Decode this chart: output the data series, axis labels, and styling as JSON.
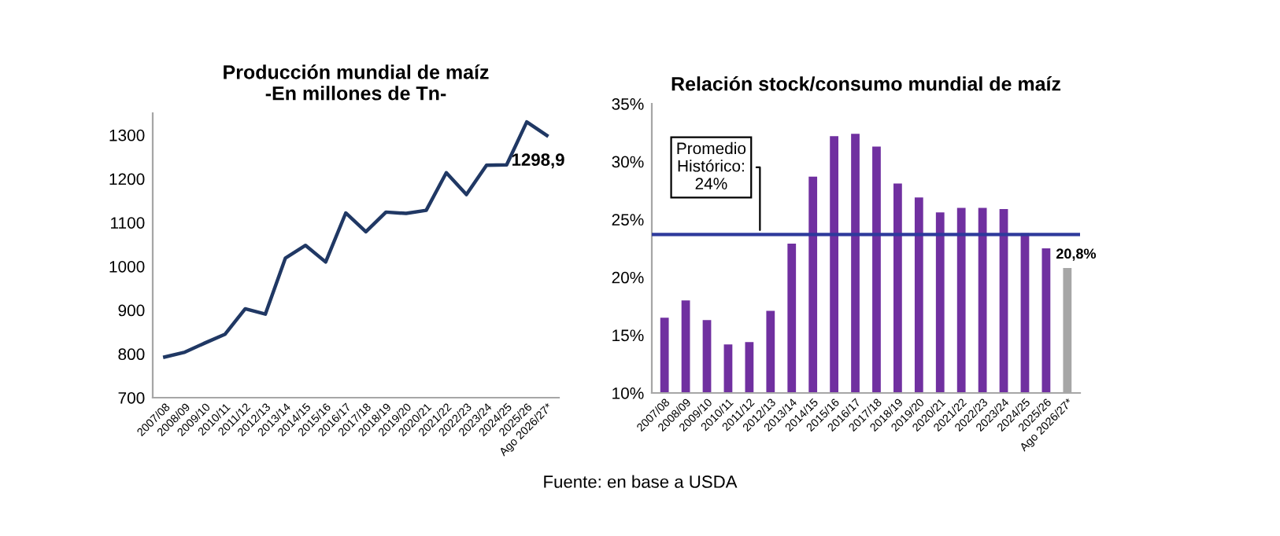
{
  "chart_data": [
    {
      "type": "line",
      "title": "Producción mundial de maíz\n-En millones de Tn-",
      "categories": [
        "2007/08",
        "2008/09",
        "2009/10",
        "2010/11",
        "2011/12",
        "2012/13",
        "2013/14",
        "2014/15",
        "2015/16",
        "2016/17",
        "2017/18",
        "2018/19",
        "2019/20",
        "2020/21",
        "2021/22",
        "2022/23",
        "2023/24",
        "2024/25",
        "2025/26",
        "Ago 2026/27*"
      ],
      "series": [
        {
          "color": "#203864",
          "values": [
            793,
            804,
            825,
            845,
            903,
            891,
            1019,
            1048,
            1010,
            1122,
            1079,
            1124,
            1121,
            1128,
            1214,
            1164,
            1231,
            1232,
            1330,
            1298.9
          ],
          "value_labels": [
            null,
            null,
            null,
            null,
            null,
            null,
            null,
            null,
            null,
            null,
            null,
            null,
            null,
            null,
            null,
            null,
            null,
            null,
            null,
            "1298,9"
          ]
        }
      ],
      "ylim": [
        700,
        1350
      ],
      "yticks": [
        700,
        800,
        900,
        1000,
        1100,
        1200,
        1300
      ],
      "grid": false,
      "legend": false,
      "marker": "none",
      "line_style": "solid"
    },
    {
      "type": "bar",
      "title": "Relación stock/consumo mundial de maíz",
      "categories": [
        "2007/08",
        "2008/09",
        "2009/10",
        "2010/11",
        "2011/12",
        "2012/13",
        "2013/14",
        "2014/15",
        "2015/16",
        "2016/17",
        "2017/18",
        "2018/19",
        "2019/20",
        "2020/21",
        "2021/22",
        "2022/23",
        "2023/24",
        "2024/25",
        "2025/26",
        "Ago 2026/27*"
      ],
      "series": [
        {
          "colors": [
            "#7030a0",
            "#7030a0",
            "#7030a0",
            "#7030a0",
            "#7030a0",
            "#7030a0",
            "#7030a0",
            "#7030a0",
            "#7030a0",
            "#7030a0",
            "#7030a0",
            "#7030a0",
            "#7030a0",
            "#7030a0",
            "#7030a0",
            "#7030a0",
            "#7030a0",
            "#7030a0",
            "#7030a0",
            "#a6a6a6"
          ],
          "values": [
            16.5,
            18.0,
            16.3,
            14.2,
            14.4,
            17.1,
            22.9,
            28.7,
            32.2,
            32.4,
            31.3,
            28.1,
            26.9,
            25.6,
            26.0,
            26.0,
            25.9,
            23.8,
            22.5,
            20.8
          ],
          "value_labels": [
            null,
            null,
            null,
            null,
            null,
            null,
            null,
            null,
            null,
            null,
            null,
            null,
            null,
            null,
            null,
            null,
            null,
            null,
            null,
            "20,8%"
          ]
        }
      ],
      "ylim": [
        10,
        35
      ],
      "yticks": [
        {
          "value": 10,
          "label": "10%"
        },
        {
          "value": 15,
          "label": "15%"
        },
        {
          "value": 20,
          "label": "20%"
        },
        {
          "value": 25,
          "label": "25%"
        },
        {
          "value": 30,
          "label": "30%"
        },
        {
          "value": 35,
          "label": "35%"
        }
      ],
      "ref_lines": [
        {
          "axis": "y",
          "value": 23.7,
          "label": "Promedio\nHistórico:\n24%",
          "color": "#2e3a9c",
          "line_style": "solid"
        }
      ],
      "grid": false,
      "legend": false,
      "annotations": [
        "Fuente: en base a USDA"
      ]
    }
  ]
}
